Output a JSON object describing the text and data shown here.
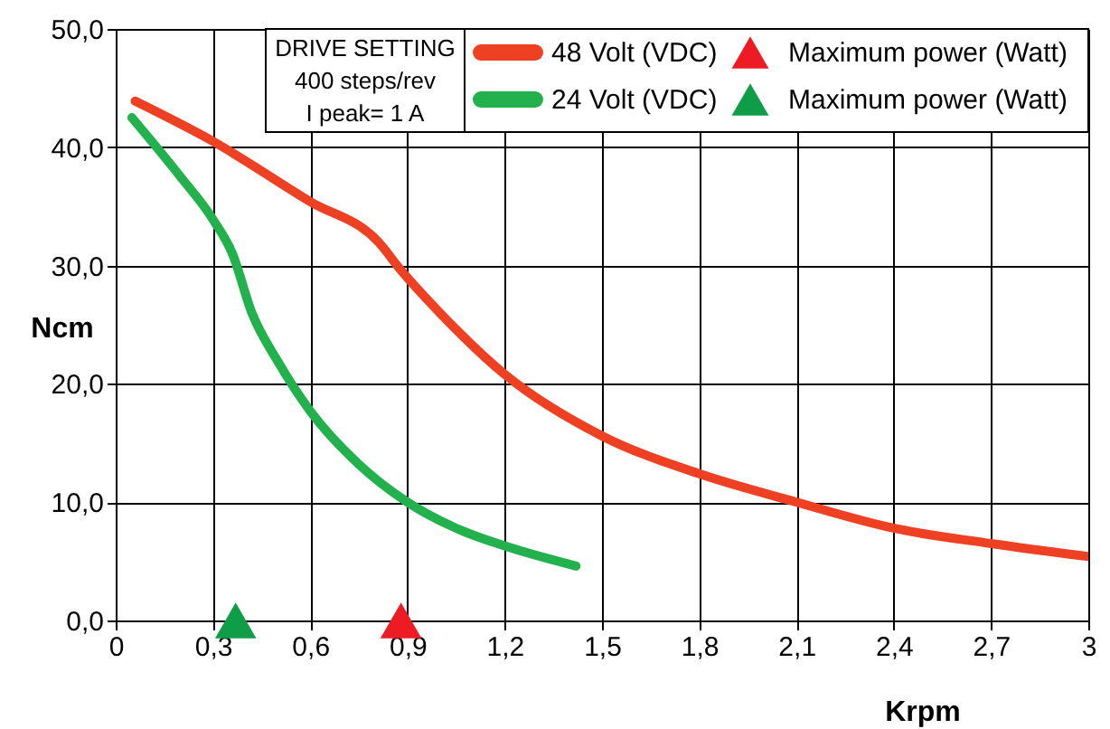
{
  "chart_data": {
    "type": "line",
    "xlabel": "Krpm",
    "ylabel": "Ncm",
    "xlim": [
      0,
      3
    ],
    "ylim": [
      0,
      50
    ],
    "xticks": [
      0,
      {
        "value": 0.3,
        "label": "0,3"
      },
      {
        "value": 0.6,
        "label": "0,6"
      },
      {
        "value": 0.9,
        "label": "0,9"
      },
      {
        "value": 1.2,
        "label": "1,2"
      },
      {
        "value": 1.5,
        "label": "1,5"
      },
      {
        "value": 1.8,
        "label": "1,8"
      },
      {
        "value": 2.1,
        "label": "2,1"
      },
      {
        "value": 2.4,
        "label": "2,4"
      },
      {
        "value": 2.7,
        "label": "2,7"
      },
      3
    ],
    "yticks": [
      {
        "value": 0,
        "label": "0,0"
      },
      {
        "value": 10,
        "label": "10,0"
      },
      {
        "value": 20,
        "label": "20,0"
      },
      {
        "value": 30,
        "label": "30,0"
      },
      {
        "value": 40,
        "label": "40,0"
      },
      {
        "value": 50,
        "label": "50,0"
      }
    ],
    "grid": true,
    "legend": "top right",
    "line_style": "solid",
    "annotations": [
      "DRIVE SETTING",
      "400 steps/rev",
      "I peak= 1 A"
    ],
    "series": [
      {
        "name": "48 Volt (VDC)",
        "color": "#ee4023",
        "x": [
          0.06,
          0.3,
          0.6,
          0.81,
          0.88,
          1.0,
          1.2,
          1.5,
          1.8,
          2.1,
          2.4,
          2.7,
          3.0
        ],
        "values": [
          43.9,
          40.5,
          35.4,
          32.0,
          29.6,
          26.0,
          20.8,
          15.6,
          12.4,
          10.0,
          7.8,
          6.5,
          5.4
        ]
      },
      {
        "name": "24 Volt (VDC)",
        "color": "#22b14c",
        "x": [
          0.05,
          0.2,
          0.3,
          0.36,
          0.42,
          0.5,
          0.6,
          0.75,
          0.9,
          1.05,
          1.2,
          1.42
        ],
        "values": [
          42.5,
          37.5,
          33.9,
          31.0,
          26.0,
          21.9,
          17.7,
          13.2,
          10.0,
          7.8,
          6.3,
          4.6
        ]
      },
      {
        "name": "Maximum power (Watt)",
        "type": "scatter",
        "marker": "triangle",
        "color": "#ed1c24",
        "x": [
          0.88
        ],
        "values": [
          0
        ]
      },
      {
        "name": "Maximum power (Watt)",
        "type": "scatter",
        "marker": "triangle",
        "color": "#0f9d48",
        "x": [
          0.37
        ],
        "values": [
          0
        ]
      }
    ]
  }
}
